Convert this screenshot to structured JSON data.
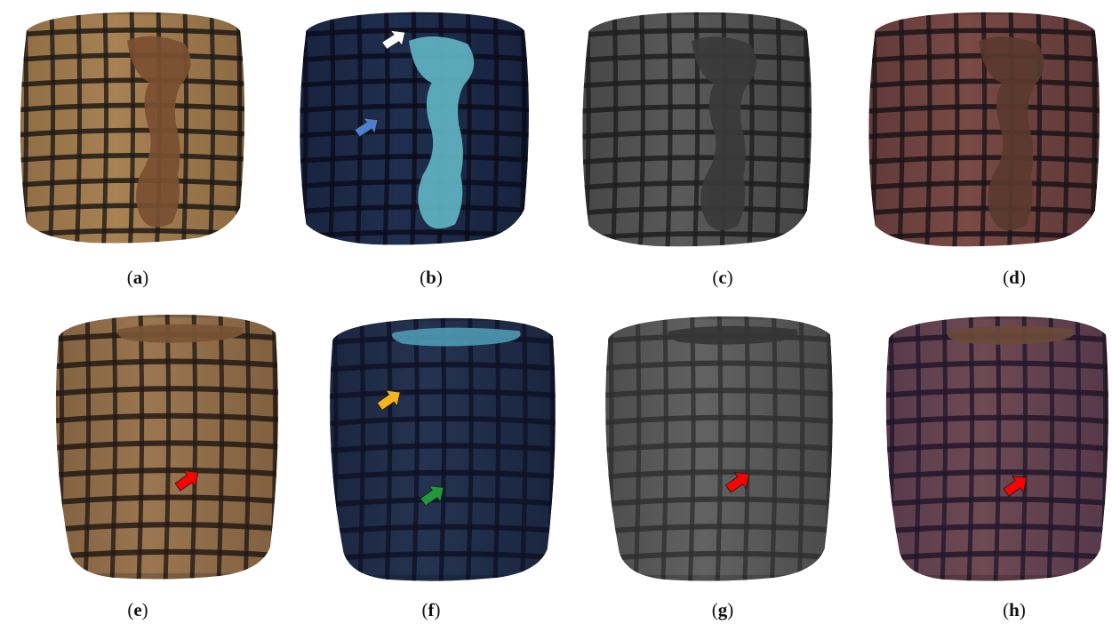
{
  "figure": {
    "panels": [
      {
        "id": "a",
        "label": "a",
        "variant": "visible-light",
        "surface_color": "#a88253",
        "mid_color": "#8c6a42",
        "line_color": "#1f1a16",
        "patch_color": "#7a4f32",
        "arrows": []
      },
      {
        "id": "b",
        "label": "b",
        "variant": "uv-fluorescence",
        "surface_color": "#1f2f4f",
        "mid_color": "#17223d",
        "line_color": "#0b0d1c",
        "patch_color": "#5fb3c2",
        "arrows": [
          {
            "color": "#ffffff"
          },
          {
            "color": "#4f7fcf"
          }
        ]
      },
      {
        "id": "c",
        "label": "c",
        "variant": "infrared-grayscale",
        "surface_color": "#5a5a5a",
        "mid_color": "#444444",
        "line_color": "#1e1e1e",
        "patch_color": "#3a3a3a",
        "arrows": []
      },
      {
        "id": "d",
        "label": "d",
        "variant": "false-color",
        "surface_color": "#7a4a45",
        "mid_color": "#5e3838",
        "line_color": "#1c1418",
        "patch_color": "#5a3a2e",
        "arrows": []
      },
      {
        "id": "e",
        "label": "e",
        "variant": "visible-light",
        "surface_color": "#9b7650",
        "mid_color": "#7f5f3f",
        "line_color": "#231a14",
        "patch_color": "#7a5535",
        "arrows": [
          {
            "color": "#ff0000"
          }
        ]
      },
      {
        "id": "f",
        "label": "f",
        "variant": "uv-fluorescence",
        "surface_color": "#243350",
        "mid_color": "#1a253e",
        "line_color": "#0e1226",
        "patch_color": "#4d98b0",
        "arrows": [
          {
            "color": "#f4b21c"
          },
          {
            "color": "#1f9a3a"
          }
        ]
      },
      {
        "id": "g",
        "label": "g",
        "variant": "infrared-grayscale",
        "surface_color": "#626262",
        "mid_color": "#4a4a4a",
        "line_color": "#303030",
        "patch_color": "#353535",
        "arrows": [
          {
            "color": "#ff0000"
          }
        ]
      },
      {
        "id": "h",
        "label": "h",
        "variant": "false-color",
        "surface_color": "#6e4a52",
        "mid_color": "#55384a",
        "line_color": "#22182a",
        "patch_color": "#6a4a3a",
        "arrows": [
          {
            "color": "#ff0000"
          }
        ]
      }
    ]
  }
}
